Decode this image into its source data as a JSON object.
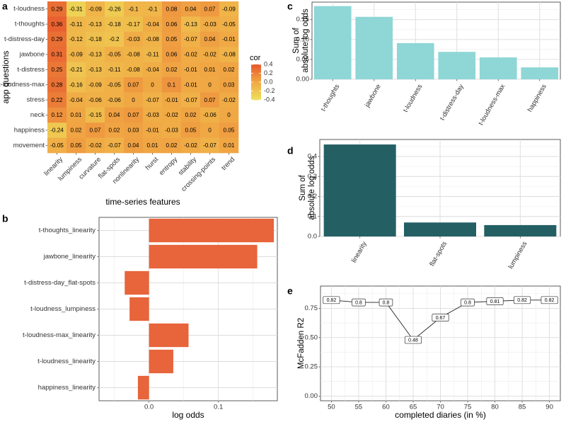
{
  "chart_data": [
    {
      "panel": "a",
      "type": "heatmap",
      "xlabel": "time-series features",
      "ylabel": "app questions",
      "x_categories": [
        "linearity",
        "lumpiness",
        "curvature",
        "flat-spots",
        "nonlinearity",
        "hurst",
        "entropy",
        "stability",
        "crossing-points",
        "trend"
      ],
      "y_categories": [
        "t-loudness",
        "t-thoughts",
        "t-distress-day",
        "jawbone",
        "t-distress",
        "t-loudness-max",
        "stress",
        "neck",
        "happiness",
        "movement"
      ],
      "values": [
        [
          0.29,
          -0.31,
          -0.09,
          -0.26,
          -0.1,
          -0.1,
          0.08,
          0.04,
          0.07,
          -0.09
        ],
        [
          0.36,
          -0.11,
          -0.13,
          -0.18,
          -0.17,
          -0.04,
          0.06,
          -0.13,
          -0.03,
          -0.05
        ],
        [
          0.29,
          -0.12,
          -0.18,
          -0.2,
          -0.03,
          -0.08,
          0.05,
          -0.07,
          0.04,
          -0.01
        ],
        [
          0.31,
          -0.09,
          -0.13,
          -0.05,
          -0.08,
          -0.11,
          0.06,
          -0.02,
          -0.02,
          -0.08
        ],
        [
          0.25,
          -0.21,
          -0.13,
          -0.11,
          -0.08,
          -0.04,
          0.02,
          -0.01,
          0.01,
          0.02
        ],
        [
          0.28,
          -0.16,
          -0.09,
          -0.05,
          0.07,
          0,
          0.1,
          -0.01,
          0,
          0.03
        ],
        [
          0.22,
          -0.04,
          -0.06,
          -0.06,
          0,
          -0.07,
          -0.01,
          -0.07,
          0.07,
          -0.02
        ],
        [
          0.12,
          0.01,
          -0.15,
          0.04,
          0.07,
          -0.03,
          -0.02,
          0.02,
          -0.06,
          0
        ],
        [
          -0.24,
          0.02,
          0.07,
          0.02,
          0.03,
          -0.01,
          -0.03,
          0.05,
          0,
          0.05
        ],
        [
          -0.05,
          0.05,
          -0.02,
          -0.07,
          0.04,
          0.01,
          0.02,
          -0.02,
          -0.07,
          0.01
        ]
      ],
      "cell_labels": [
        [
          "0.29",
          "-0.31",
          "-0.09",
          "-0.26",
          "-0.1",
          "-0.1",
          "0.08",
          "0.04",
          "0.07",
          "-0.09"
        ],
        [
          "0.36",
          "-0.11",
          "-0.13",
          "-0.18",
          "-0.17",
          "-0.04",
          "0.06",
          "-0.13",
          "-0.03",
          "-0.05"
        ],
        [
          "0.29",
          "-0.12",
          "-0.18",
          "-0.2",
          "-0.03",
          "-0.08",
          "0.05",
          "-0.07",
          "0.04",
          "-0.01"
        ],
        [
          "0.31",
          "-0.09",
          "-0.13",
          "-0.05",
          "-0.08",
          "-0.11",
          "0.06",
          "-0.02",
          "-0.02",
          "-0.08"
        ],
        [
          "0.25",
          "-0.21",
          "-0.13",
          "-0.11",
          "-0.08",
          "-0.04",
          "0.02",
          "-0.01",
          "0.01",
          "0.02"
        ],
        [
          "0.28",
          "-0.16",
          "-0.09",
          "-0.05",
          "0.07",
          "0",
          "0.1",
          "-0.01",
          "0",
          "0.03"
        ],
        [
          "0.22",
          "-0.04",
          "-0.06",
          "-0.06",
          "0",
          "-0.07",
          "-0.01",
          "-0.07",
          "0.07",
          "-0.02"
        ],
        [
          "0.12",
          "0.01",
          "-0.15",
          "0.04",
          "0.07",
          "-0.03",
          "-0.02",
          "0.02",
          "-0.06",
          "0"
        ],
        [
          "-0.24",
          "0.02",
          "0.07",
          "0.02",
          "0.03",
          "-0.01",
          "-0.03",
          "0.05",
          "0",
          "0.05"
        ],
        [
          "-0.05",
          "0.05",
          "-0.02",
          "-0.07",
          "0.04",
          "0.01",
          "0.02",
          "-0.02",
          "-0.07",
          "0.01"
        ]
      ],
      "legend": {
        "title": "cor",
        "ticks": [
          0.4,
          0.2,
          0.0,
          -0.2,
          -0.4
        ],
        "tick_labels": [
          "0.4",
          "0.2",
          "0.0",
          "-0.2",
          "-0.4"
        ],
        "range": [
          -0.4,
          0.4
        ],
        "colors": {
          "low": "#eede5a",
          "mid": "#f0a844",
          "high": "#e8592e"
        }
      }
    },
    {
      "panel": "b",
      "type": "bar",
      "orientation": "horizontal",
      "categories": [
        "t-thoughts_linearity",
        "jawbone_linearity",
        "t-distress-day_flat-spots",
        "t-loudness_lumpiness",
        "t-loudness-max_linearity",
        "t-loudness_linearity",
        "happiness_linearity"
      ],
      "values": [
        0.18,
        0.156,
        -0.035,
        -0.028,
        0.057,
        0.035,
        -0.016
      ],
      "xlabel": "log odds",
      "xlim": [
        -0.072,
        0.185
      ],
      "xticks": [
        0.0,
        0.1
      ],
      "xtick_labels": [
        "0.0",
        "0.1"
      ],
      "color": "#e8643a"
    },
    {
      "panel": "c",
      "type": "bar",
      "categories": [
        "t-thoughts",
        "jawbone",
        "t-loudness",
        "t-distress-day",
        "t-loudness-max",
        "happiness"
      ],
      "values": [
        0.184,
        0.157,
        0.091,
        0.069,
        0.055,
        0.03
      ],
      "xlabel": "",
      "ylabel": "Sum of\nabsolute log odds",
      "ylim": [
        0,
        0.194
      ],
      "yticks": [
        0.0,
        0.05,
        0.1,
        0.15
      ],
      "ytick_labels": [
        "0.00",
        "0.05",
        "0.10",
        "0.15"
      ],
      "color": "#8fd6d6"
    },
    {
      "panel": "d",
      "type": "bar",
      "categories": [
        "linearity",
        "flat-spots",
        "lumpiness"
      ],
      "values": [
        0.46,
        0.07,
        0.057
      ],
      "xlabel": "",
      "ylabel": "Sum of\nabsolute log odds",
      "ylim": [
        0,
        0.485
      ],
      "yticks": [
        0.0,
        0.1,
        0.2,
        0.3,
        0.4
      ],
      "ytick_labels": [
        "0.0",
        "0.1",
        "0.2",
        "0.3",
        "0.4"
      ],
      "color": "#245f64"
    },
    {
      "panel": "e",
      "type": "line",
      "x": [
        50,
        55,
        60,
        65,
        70,
        75,
        80,
        85,
        90
      ],
      "y": [
        0.82,
        0.8,
        0.8,
        0.48,
        0.67,
        0.8,
        0.81,
        0.82,
        0.82
      ],
      "point_labels": [
        "0.82",
        "0.8",
        "0.8",
        "0.48",
        "0.67",
        "0.8",
        "0.81",
        "0.82",
        "0.82"
      ],
      "xlabel": "completed diaries (in %)",
      "ylabel": "McFadden R2",
      "xlim": [
        48,
        92
      ],
      "ylim": [
        -0.04,
        0.94
      ],
      "xticks": [
        50,
        55,
        60,
        65,
        70,
        75,
        80,
        85,
        90
      ],
      "xtick_labels": [
        "50",
        "55",
        "60",
        "65",
        "70",
        "75",
        "80",
        "85",
        "90"
      ],
      "yticks": [
        0.0,
        0.25,
        0.5,
        0.75
      ],
      "ytick_labels": [
        "0.00",
        "0.25",
        "0.50",
        "0.75"
      ]
    }
  ]
}
